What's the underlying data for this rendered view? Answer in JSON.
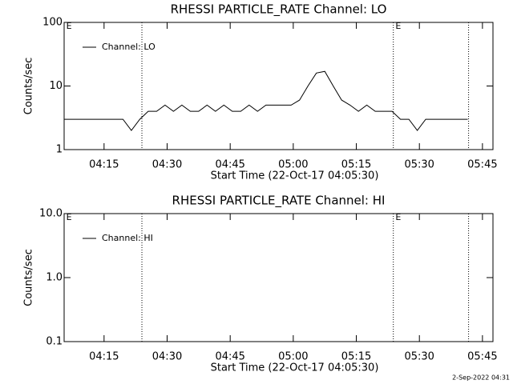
{
  "chart_data": [
    {
      "type": "line",
      "title": "RHESSI PARTICLE_RATE Channel: LO",
      "xlabel": "Start Time (22-Oct-17 04:05:30)",
      "ylabel": "Counts/sec",
      "log_y": true,
      "ylim": [
        1,
        100
      ],
      "yticks": [
        1,
        10,
        100
      ],
      "xlim": [
        0,
        102
      ],
      "xticks": [
        {
          "value": 9.5,
          "label": "04:15"
        },
        {
          "value": 24.5,
          "label": "04:30"
        },
        {
          "value": 39.5,
          "label": "04:45"
        },
        {
          "value": 54.5,
          "label": "05:00"
        },
        {
          "value": 69.5,
          "label": "05:15"
        },
        {
          "value": 84.5,
          "label": "05:30"
        },
        {
          "value": 99.5,
          "label": "05:45"
        }
      ],
      "vlines": [
        18.5,
        78.3,
        96.2
      ],
      "annotations": [
        {
          "x": 0.5,
          "text": "E"
        },
        {
          "x": 78.8,
          "text": "E"
        }
      ],
      "x": [
        0,
        2,
        4,
        6,
        8,
        10,
        12,
        14,
        16,
        18,
        20,
        22,
        24,
        26,
        28,
        30,
        32,
        34,
        36,
        38,
        40,
        42,
        44,
        46,
        48,
        50,
        52,
        54,
        56,
        58,
        60,
        62,
        64,
        66,
        68,
        70,
        72,
        74,
        76,
        78,
        80,
        82,
        84,
        86,
        88,
        90,
        92,
        94,
        96
      ],
      "series": [
        {
          "name": "Channel: LO",
          "color": "#000000",
          "values": [
            3,
            3,
            3,
            3,
            3,
            3,
            3,
            3,
            2,
            3,
            4,
            4,
            5,
            4,
            5,
            4,
            4,
            5,
            4,
            5,
            4,
            4,
            5,
            4,
            5,
            5,
            5,
            5,
            6,
            10,
            16,
            17,
            10,
            6,
            5,
            4,
            5,
            4,
            4,
            4,
            3,
            3,
            2,
            3,
            3,
            3,
            3,
            3,
            3
          ]
        }
      ]
    },
    {
      "type": "line",
      "title": "RHESSI PARTICLE_RATE Channel: HI",
      "xlabel": "Start Time (22-Oct-17 04:05:30)",
      "ylabel": "Counts/sec",
      "log_y": true,
      "ylim": [
        0.1,
        10
      ],
      "yticks": [
        0.1,
        {
          "value": 1,
          "label": "1.0"
        },
        {
          "value": 10,
          "label": "10.0"
        }
      ],
      "xlim": [
        0,
        102
      ],
      "xticks": [
        {
          "value": 9.5,
          "label": "04:15"
        },
        {
          "value": 24.5,
          "label": "04:30"
        },
        {
          "value": 39.5,
          "label": "04:45"
        },
        {
          "value": 54.5,
          "label": "05:00"
        },
        {
          "value": 69.5,
          "label": "05:15"
        },
        {
          "value": 84.5,
          "label": "05:30"
        },
        {
          "value": 99.5,
          "label": "05:45"
        }
      ],
      "vlines": [
        18.5,
        78.3,
        96.2
      ],
      "annotations": [
        {
          "x": 0.5,
          "text": "E"
        },
        {
          "x": 78.8,
          "text": "E"
        }
      ],
      "x": [],
      "series": [
        {
          "name": "Channel: HI",
          "color": "#000000",
          "values": []
        }
      ]
    }
  ],
  "footer": "2-Sep-2022 04:31"
}
